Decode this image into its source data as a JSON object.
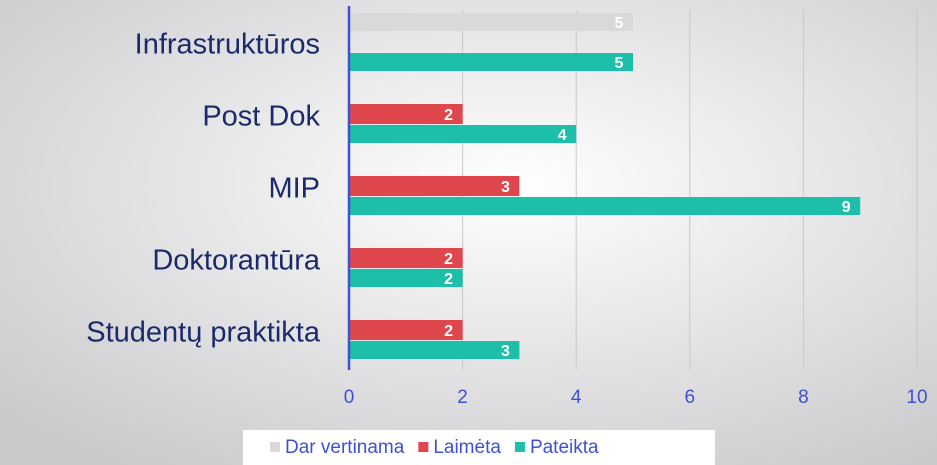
{
  "chart_data": {
    "type": "barh",
    "categories": [
      "Infrastruktūros",
      "Post Dok",
      "MIP",
      "Doktorantūra",
      "Studentų praktikta"
    ],
    "series": [
      {
        "name": "Dar vertinama",
        "color": "#d9d9d9",
        "values": [
          5,
          null,
          null,
          null,
          null
        ]
      },
      {
        "name": "Laimėta",
        "color": "#e0474c",
        "values": [
          null,
          2,
          3,
          2,
          2
        ]
      },
      {
        "name": "Pateikta",
        "color": "#1dbfab",
        "values": [
          5,
          4,
          9,
          2,
          3
        ]
      }
    ],
    "xlim": [
      0,
      10
    ],
    "xticks": [
      0,
      2,
      4,
      6,
      8,
      10
    ],
    "grid": true,
    "legend": "bottom"
  }
}
